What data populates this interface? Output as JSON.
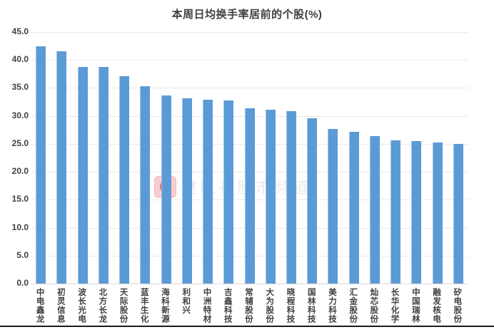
{
  "chart_data": {
    "type": "bar",
    "title": "本周日均换手率居前的个股(%)",
    "categories": [
      "中电鑫龙",
      "初灵信息",
      "波长光电",
      "北方长龙",
      "天际股份",
      "蓝丰生化",
      "海科新源",
      "利和兴",
      "中洲特材",
      "吉鑫科技",
      "常辅股份",
      "大为股份",
      "晓程科技",
      "国林科技",
      "美力科技",
      "汇金股份",
      "灿芯股份",
      "长华化学",
      "中国瑞林",
      "融发核电",
      "矽电股份"
    ],
    "values": [
      42.4,
      41.6,
      38.8,
      38.7,
      37.1,
      35.3,
      33.6,
      33.2,
      32.9,
      32.8,
      31.4,
      31.1,
      30.9,
      29.6,
      27.6,
      27.2,
      26.4,
      25.6,
      25.5,
      25.3,
      25.0
    ],
    "xlabel": "",
    "ylabel": "",
    "ylim": [
      0,
      45
    ],
    "ytick_step": 5,
    "ytick_decimals": 1,
    "grid": true,
    "legend": "none",
    "bar_color": "#5B9BD5",
    "gridline_color": "#e9e9e9",
    "axis_label_color": "#404040"
  },
  "watermark": {
    "logo_glyph": "C",
    "text": "财联社股市频道"
  }
}
